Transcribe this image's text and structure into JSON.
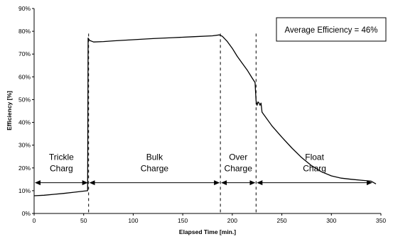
{
  "chart_data": {
    "type": "line",
    "title": "",
    "xlabel": "Elapsed Time [min.]",
    "ylabel": "Efficiency [%]",
    "xlim": [
      0,
      350
    ],
    "ylim": [
      0,
      90
    ],
    "x_ticks": [
      0,
      50,
      100,
      150,
      200,
      250,
      300,
      350
    ],
    "y_ticks": [
      0,
      10,
      20,
      30,
      40,
      50,
      60,
      70,
      80,
      90
    ],
    "y_tick_suffix": "%",
    "grid": false,
    "annotation_box": "Average Efficiency = 46%",
    "series": [
      {
        "x": [
          0,
          10,
          20,
          30,
          40,
          50,
          54,
          54.5,
          56,
          60,
          70,
          80,
          100,
          120,
          140,
          160,
          180,
          187,
          190,
          195,
          200,
          205,
          210,
          215,
          220,
          223,
          224,
          225,
          226,
          227,
          228,
          229,
          230,
          240,
          250,
          260,
          270,
          280,
          290,
          300,
          310,
          320,
          330,
          340,
          345
        ],
        "y": [
          7.8,
          8.0,
          8.4,
          8.8,
          9.3,
          9.8,
          10.0,
          77,
          76,
          75.3,
          75.5,
          75.8,
          76.3,
          76.8,
          77.2,
          77.6,
          78.0,
          78.4,
          77.8,
          75.5,
          72.5,
          69.0,
          66.0,
          63.0,
          59.5,
          57.5,
          49.5,
          47.5,
          49.0,
          48.5,
          47.5,
          48.5,
          44.5,
          38.5,
          33.5,
          28.8,
          24.5,
          21.0,
          18.3,
          16.5,
          15.5,
          15.0,
          14.6,
          14.2,
          13.0
        ]
      }
    ],
    "phase_boundaries": [
      55,
      188,
      224
    ],
    "phases": [
      {
        "line1": "Trickle",
        "line2": "Charg",
        "x_start": 0,
        "x_end": 55,
        "arrow_y": 13.5
      },
      {
        "line1": "Bulk",
        "line2": "Charge",
        "x_start": 55,
        "x_end": 188,
        "arrow_y": 13.5
      },
      {
        "line1": "Over",
        "line2": "Charge",
        "x_start": 188,
        "x_end": 224,
        "arrow_y": 13.5
      },
      {
        "line1": "Float",
        "line2": "Charg",
        "x_start": 224,
        "x_end": 342,
        "arrow_y": 13.5
      }
    ]
  }
}
